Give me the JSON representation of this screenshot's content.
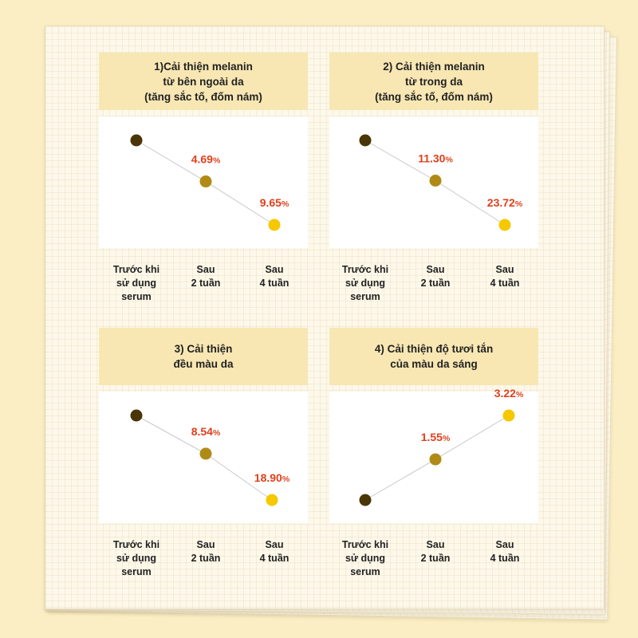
{
  "colors": {
    "background": "#fbeec4",
    "header_fill": "#f8e7b3",
    "label_red": "#e0401c",
    "line": "#c9c9c9",
    "point_before": "#4a3508",
    "point_2w": "#b08a16",
    "point_4w": "#f5c800"
  },
  "chart_data": [
    {
      "type": "line",
      "title": "1)Cải thiện melanin\ntừ bên ngoài da\n(tăng sắc tố, đốm nám)",
      "categories": [
        "Trước khi\nsử dụng\nserum",
        "Sau\n2 tuần",
        "Sau\n4 tuần"
      ],
      "values": [
        0,
        -4.69,
        -9.65
      ],
      "labels": [
        "",
        "4.69",
        "9.65"
      ],
      "unit": "%"
    },
    {
      "type": "line",
      "title": "2) Cải thiện melanin\ntừ trong da\n(tăng sắc tố, đốm nám)",
      "categories": [
        "Trước khi\nsử dụng\nserum",
        "Sau\n2 tuần",
        "Sau\n4 tuần"
      ],
      "values": [
        0,
        -11.3,
        -23.72
      ],
      "labels": [
        "",
        "11.30",
        "23.72"
      ],
      "unit": "%"
    },
    {
      "type": "line",
      "title": "3) Cải thiện\nđều màu da",
      "categories": [
        "Trước khi\nsử dụng\nserum",
        "Sau\n2 tuần",
        "Sau\n4 tuần"
      ],
      "values": [
        0,
        -8.54,
        -18.9
      ],
      "labels": [
        "",
        "8.54",
        "18.90"
      ],
      "unit": "%"
    },
    {
      "type": "line",
      "title": "4) Cải thiện độ tươi tắn\ncủa màu da sáng",
      "categories": [
        "Trước khi\nsử dụng\nserum",
        "Sau\n2 tuần",
        "Sau\n4 tuần"
      ],
      "values": [
        0,
        1.55,
        3.22
      ],
      "labels": [
        "",
        "1.55",
        "3.22"
      ],
      "unit": "%"
    }
  ]
}
